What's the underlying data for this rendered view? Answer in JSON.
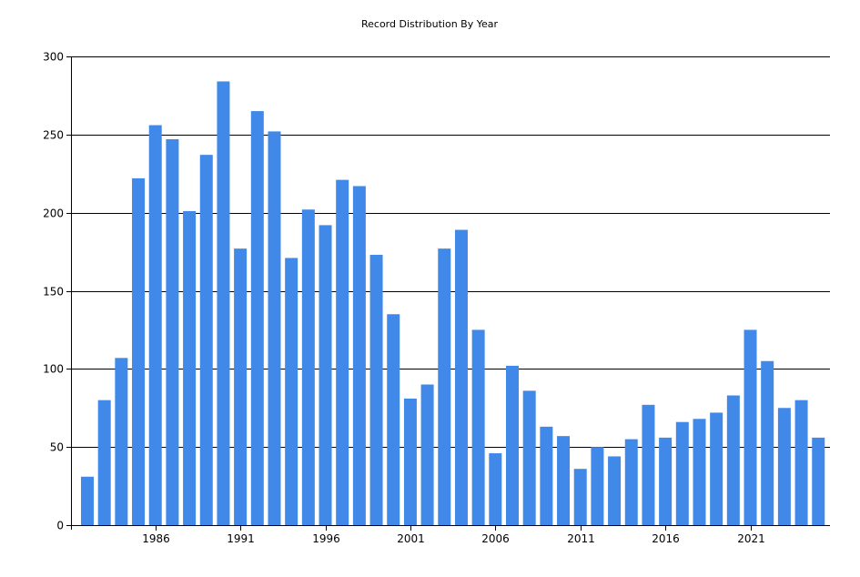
{
  "chart_data": {
    "type": "bar",
    "title": "Record Distribution By Year",
    "xlabel": "",
    "ylabel": "",
    "ylim": [
      0,
      300
    ],
    "yticks": [
      0,
      50,
      100,
      150,
      200,
      250,
      300
    ],
    "xtick_labels": [
      "1986",
      "1991",
      "1996",
      "2001",
      "2006",
      "2011",
      "2016",
      "2021"
    ],
    "grid": "horizontal",
    "bar_color": "#4189E8",
    "categories": [
      1982,
      1983,
      1984,
      1985,
      1986,
      1987,
      1988,
      1989,
      1990,
      1991,
      1992,
      1993,
      1994,
      1995,
      1996,
      1997,
      1998,
      1999,
      2000,
      2001,
      2002,
      2003,
      2004,
      2005,
      2006,
      2007,
      2008,
      2009,
      2010,
      2011,
      2012,
      2013,
      2014,
      2015,
      2016,
      2017,
      2018,
      2019,
      2020,
      2021,
      2022,
      2023,
      2024,
      2025
    ],
    "values": [
      31,
      80,
      107,
      222,
      256,
      247,
      201,
      237,
      284,
      177,
      265,
      252,
      171,
      202,
      192,
      221,
      217,
      173,
      135,
      81,
      90,
      177,
      189,
      125,
      46,
      102,
      86,
      63,
      57,
      36,
      50,
      44,
      55,
      77,
      56,
      66,
      68,
      72,
      83,
      125,
      105,
      75,
      80,
      56
    ]
  }
}
